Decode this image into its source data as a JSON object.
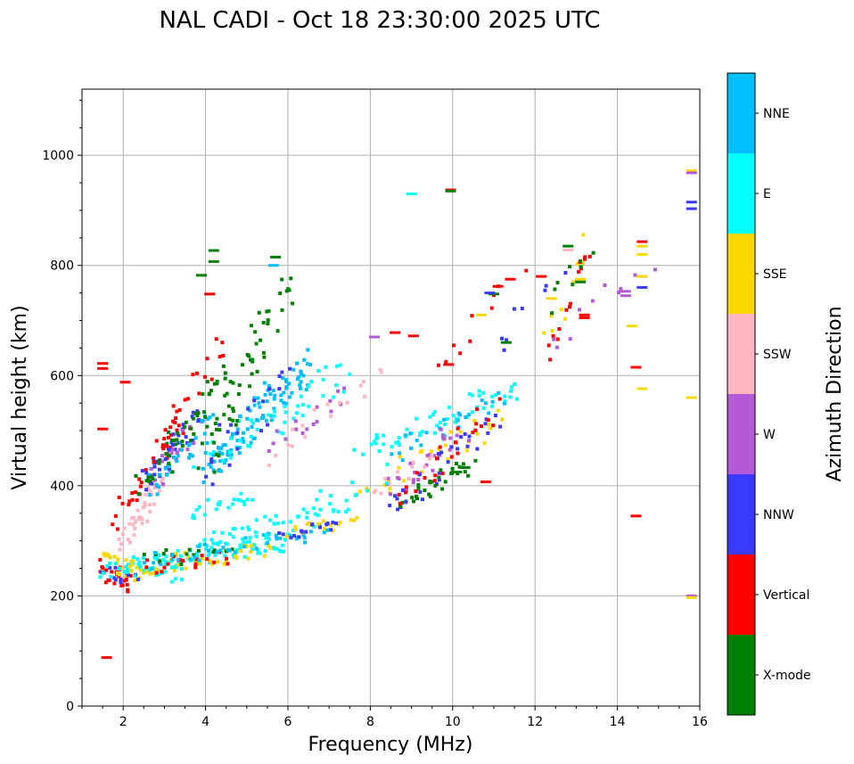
{
  "chart_data": {
    "type": "scatter",
    "title": "NAL CADI - Oct 18 23:30:00 2025 UTC",
    "xlabel": "Frequency (MHz)",
    "ylabel": "Virtual height (km)",
    "colorbar_label": "Azimuth Direction",
    "xlim": [
      1,
      16
    ],
    "ylim": [
      0,
      1120
    ],
    "x_ticks": [
      2,
      4,
      6,
      8,
      10,
      12,
      14,
      16
    ],
    "y_ticks": [
      0,
      200,
      400,
      600,
      800,
      1000
    ],
    "grid": true,
    "categories": [
      {
        "name": "X-mode",
        "color": "#008000"
      },
      {
        "name": "Vertical",
        "color": "#ff0000"
      },
      {
        "name": "NNW",
        "color": "#3a3aff"
      },
      {
        "name": "W",
        "color": "#b45ad6"
      },
      {
        "name": "SSW",
        "color": "#ffb6c1"
      },
      {
        "name": "SSE",
        "color": "#ffd700"
      },
      {
        "name": "E",
        "color": "#00ffff"
      },
      {
        "name": "NNE",
        "color": "#00bfff"
      }
    ],
    "traces": [
      {
        "category": "Vertical",
        "x0": 1.4,
        "x1": 2.2,
        "y0": 250,
        "y1": 220,
        "n": 26,
        "jx": 0.12,
        "jy": 20
      },
      {
        "category": "SSE",
        "x0": 1.5,
        "x1": 2.4,
        "y0": 265,
        "y1": 235,
        "n": 24,
        "jx": 0.12,
        "jy": 20
      },
      {
        "category": "NNW",
        "x0": 1.5,
        "x1": 2.3,
        "y0": 250,
        "y1": 225,
        "n": 12,
        "jx": 0.12,
        "jy": 15
      },
      {
        "category": "E",
        "x0": 1.5,
        "x1": 3.5,
        "y0": 245,
        "y1": 240,
        "n": 30,
        "jx": 0.15,
        "jy": 15
      },
      {
        "category": "E",
        "x0": 2.2,
        "x1": 6.0,
        "y0": 255,
        "y1": 300,
        "n": 90,
        "jx": 0.15,
        "jy": 18
      },
      {
        "category": "SSE",
        "x0": 2.2,
        "x1": 5.5,
        "y0": 250,
        "y1": 285,
        "n": 40,
        "jx": 0.15,
        "jy": 16
      },
      {
        "category": "Vertical",
        "x0": 2.5,
        "x1": 4.5,
        "y0": 255,
        "y1": 270,
        "n": 20,
        "jx": 0.15,
        "jy": 15
      },
      {
        "category": "X-mode",
        "x0": 2.5,
        "x1": 4.6,
        "y0": 265,
        "y1": 280,
        "n": 14,
        "jx": 0.15,
        "jy": 15
      },
      {
        "category": "NNE",
        "x0": 2.5,
        "x1": 7.0,
        "y0": 260,
        "y1": 320,
        "n": 40,
        "jx": 0.15,
        "jy": 15
      },
      {
        "category": "E",
        "x0": 4.0,
        "x1": 7.5,
        "y0": 300,
        "y1": 360,
        "n": 40,
        "jx": 0.15,
        "jy": 18
      },
      {
        "category": "SSE",
        "x0": 6.0,
        "x1": 7.6,
        "y0": 310,
        "y1": 340,
        "n": 18,
        "jx": 0.12,
        "jy": 12
      },
      {
        "category": "NNW",
        "x0": 5.8,
        "x1": 7.2,
        "y0": 310,
        "y1": 330,
        "n": 16,
        "jx": 0.12,
        "jy": 10
      },
      {
        "category": "E",
        "x0": 3.6,
        "x1": 5.2,
        "y0": 355,
        "y1": 380,
        "n": 22,
        "jx": 0.15,
        "jy": 15
      },
      {
        "category": "SSW",
        "x0": 1.9,
        "x1": 3.0,
        "y0": 300,
        "y1": 400,
        "n": 40,
        "jx": 0.12,
        "jy": 25
      },
      {
        "category": "Vertical",
        "x0": 1.8,
        "x1": 3.5,
        "y0": 340,
        "y1": 520,
        "n": 35,
        "jx": 0.12,
        "jy": 20
      },
      {
        "category": "NNW",
        "x0": 2.5,
        "x1": 3.8,
        "y0": 400,
        "y1": 520,
        "n": 40,
        "jx": 0.12,
        "jy": 25
      },
      {
        "category": "W",
        "x0": 2.6,
        "x1": 3.8,
        "y0": 400,
        "y1": 500,
        "n": 20,
        "jx": 0.12,
        "jy": 25
      },
      {
        "category": "NNE",
        "x0": 2.6,
        "x1": 4.2,
        "y0": 395,
        "y1": 520,
        "n": 30,
        "jx": 0.15,
        "jy": 25
      },
      {
        "category": "X-mode",
        "x0": 2.5,
        "x1": 4.5,
        "y0": 400,
        "y1": 600,
        "n": 45,
        "jx": 0.2,
        "jy": 25
      },
      {
        "category": "Vertical",
        "x0": 2.8,
        "x1": 4.5,
        "y0": 450,
        "y1": 660,
        "n": 22,
        "jx": 0.2,
        "jy": 25
      },
      {
        "category": "NNE",
        "x0": 4.0,
        "x1": 6.5,
        "y0": 430,
        "y1": 620,
        "n": 100,
        "jx": 0.25,
        "jy": 30
      },
      {
        "category": "E",
        "x0": 4.0,
        "x1": 7.5,
        "y0": 450,
        "y1": 600,
        "n": 45,
        "jx": 0.3,
        "jy": 30
      },
      {
        "category": "X-mode",
        "x0": 4.0,
        "x1": 6.0,
        "y0": 450,
        "y1": 760,
        "n": 55,
        "jx": 0.3,
        "jy": 30
      },
      {
        "category": "NNW",
        "x0": 4.0,
        "x1": 6.0,
        "y0": 430,
        "y1": 600,
        "n": 20,
        "jx": 0.3,
        "jy": 30
      },
      {
        "category": "W",
        "x0": 5.5,
        "x1": 7.5,
        "y0": 480,
        "y1": 560,
        "n": 16,
        "jx": 0.2,
        "jy": 20
      },
      {
        "category": "SSW",
        "x0": 5.5,
        "x1": 8.3,
        "y0": 460,
        "y1": 600,
        "n": 18,
        "jx": 0.2,
        "jy": 25
      },
      {
        "category": "E",
        "x0": 7.8,
        "x1": 11.5,
        "y0": 460,
        "y1": 580,
        "n": 55,
        "jx": 0.2,
        "jy": 20
      },
      {
        "category": "NNE",
        "x0": 8.5,
        "x1": 11.2,
        "y0": 460,
        "y1": 560,
        "n": 25,
        "jx": 0.2,
        "jy": 20
      },
      {
        "category": "SSE",
        "x0": 7.8,
        "x1": 11.3,
        "y0": 390,
        "y1": 520,
        "n": 30,
        "jx": 0.2,
        "jy": 25
      },
      {
        "category": "W",
        "x0": 8.5,
        "x1": 10.2,
        "y0": 380,
        "y1": 500,
        "n": 30,
        "jx": 0.2,
        "jy": 25
      },
      {
        "category": "NNW",
        "x0": 8.5,
        "x1": 11.0,
        "y0": 350,
        "y1": 520,
        "n": 30,
        "jx": 0.25,
        "jy": 25
      },
      {
        "category": "X-mode",
        "x0": 8.8,
        "x1": 10.4,
        "y0": 370,
        "y1": 440,
        "n": 30,
        "jx": 0.2,
        "jy": 20
      },
      {
        "category": "Vertical",
        "x0": 8.8,
        "x1": 11.0,
        "y0": 380,
        "y1": 540,
        "n": 25,
        "jx": 0.2,
        "jy": 20
      },
      {
        "category": "SSW",
        "x0": 8.0,
        "x1": 9.5,
        "y0": 380,
        "y1": 450,
        "n": 12,
        "jx": 0.15,
        "jy": 15
      },
      {
        "category": "E",
        "x0": 6.5,
        "x1": 8.5,
        "y0": 360,
        "y1": 420,
        "n": 10,
        "jx": 0.2,
        "jy": 20
      },
      {
        "category": "Vertical",
        "x0": 9.5,
        "x1": 11.5,
        "y0": 600,
        "y1": 780,
        "n": 10,
        "jx": 0.3,
        "jy": 20
      },
      {
        "category": "NNW",
        "x0": 11.0,
        "x1": 12.5,
        "y0": 650,
        "y1": 780,
        "n": 8,
        "jx": 0.3,
        "jy": 20
      },
      {
        "category": "SSE",
        "x0": 12.3,
        "x1": 13.2,
        "y0": 660,
        "y1": 840,
        "n": 10,
        "jx": 0.15,
        "jy": 30
      },
      {
        "category": "Vertical",
        "x0": 12.3,
        "x1": 13.3,
        "y0": 630,
        "y1": 840,
        "n": 14,
        "jx": 0.15,
        "jy": 30
      },
      {
        "category": "W",
        "x0": 12.3,
        "x1": 14.8,
        "y0": 650,
        "y1": 810,
        "n": 10,
        "jx": 0.2,
        "jy": 30
      },
      {
        "category": "X-mode",
        "x0": 12.4,
        "x1": 13.3,
        "y0": 720,
        "y1": 840,
        "n": 8,
        "jx": 0.15,
        "jy": 20
      }
    ],
    "points": [
      {
        "x": 1.5,
        "y": 622,
        "category": "Vertical"
      },
      {
        "x": 1.5,
        "y": 613,
        "category": "Vertical"
      },
      {
        "x": 1.5,
        "y": 503,
        "category": "Vertical"
      },
      {
        "x": 1.6,
        "y": 88,
        "category": "Vertical"
      },
      {
        "x": 2.05,
        "y": 588,
        "category": "Vertical"
      },
      {
        "x": 4.2,
        "y": 827,
        "category": "X-mode"
      },
      {
        "x": 4.2,
        "y": 807,
        "category": "X-mode"
      },
      {
        "x": 5.7,
        "y": 815,
        "category": "X-mode"
      },
      {
        "x": 5.65,
        "y": 800,
        "category": "NNE"
      },
      {
        "x": 3.9,
        "y": 782,
        "category": "X-mode"
      },
      {
        "x": 4.1,
        "y": 748,
        "category": "Vertical"
      },
      {
        "x": 9.0,
        "y": 930,
        "category": "E"
      },
      {
        "x": 9.95,
        "y": 937,
        "category": "Vertical"
      },
      {
        "x": 9.95,
        "y": 935,
        "category": "X-mode"
      },
      {
        "x": 8.6,
        "y": 678,
        "category": "Vertical"
      },
      {
        "x": 9.05,
        "y": 672,
        "category": "Vertical"
      },
      {
        "x": 8.1,
        "y": 670,
        "category": "W"
      },
      {
        "x": 10.7,
        "y": 710,
        "category": "SSE"
      },
      {
        "x": 12.4,
        "y": 740,
        "category": "SSE"
      },
      {
        "x": 12.15,
        "y": 780,
        "category": "Vertical"
      },
      {
        "x": 14.35,
        "y": 690,
        "category": "SSE"
      },
      {
        "x": 14.45,
        "y": 615,
        "category": "Vertical"
      },
      {
        "x": 14.6,
        "y": 576,
        "category": "SSE"
      },
      {
        "x": 14.45,
        "y": 345,
        "category": "Vertical"
      },
      {
        "x": 14.6,
        "y": 843,
        "category": "Vertical"
      },
      {
        "x": 14.6,
        "y": 835,
        "category": "SSE"
      },
      {
        "x": 14.6,
        "y": 820,
        "category": "SSE"
      },
      {
        "x": 14.6,
        "y": 780,
        "category": "SSE"
      },
      {
        "x": 14.6,
        "y": 760,
        "category": "NNW"
      },
      {
        "x": 14.2,
        "y": 745,
        "category": "W"
      },
      {
        "x": 14.2,
        "y": 753,
        "category": "W"
      },
      {
        "x": 15.8,
        "y": 972,
        "category": "SSE"
      },
      {
        "x": 15.8,
        "y": 968,
        "category": "W"
      },
      {
        "x": 15.8,
        "y": 915,
        "category": "NNW"
      },
      {
        "x": 15.8,
        "y": 903,
        "category": "NNW"
      },
      {
        "x": 15.8,
        "y": 560,
        "category": "SSE"
      },
      {
        "x": 15.8,
        "y": 200,
        "category": "W"
      },
      {
        "x": 15.8,
        "y": 197,
        "category": "SSE"
      },
      {
        "x": 13.2,
        "y": 710,
        "category": "Vertical"
      },
      {
        "x": 13.2,
        "y": 705,
        "category": "Vertical"
      },
      {
        "x": 12.8,
        "y": 835,
        "category": "X-mode"
      },
      {
        "x": 12.8,
        "y": 828,
        "category": "SSW"
      },
      {
        "x": 13.1,
        "y": 775,
        "category": "SSE"
      },
      {
        "x": 13.1,
        "y": 770,
        "category": "X-mode"
      },
      {
        "x": 11.3,
        "y": 660,
        "category": "X-mode"
      },
      {
        "x": 11.4,
        "y": 775,
        "category": "Vertical"
      },
      {
        "x": 11.1,
        "y": 762,
        "category": "Vertical"
      },
      {
        "x": 11.0,
        "y": 748,
        "category": "X-mode"
      },
      {
        "x": 10.9,
        "y": 750,
        "category": "NNW"
      },
      {
        "x": 10.8,
        "y": 407,
        "category": "Vertical"
      },
      {
        "x": 10.3,
        "y": 433,
        "category": "X-mode"
      },
      {
        "x": 10.1,
        "y": 425,
        "category": "X-mode"
      },
      {
        "x": 9.9,
        "y": 620,
        "category": "Vertical"
      }
    ]
  }
}
